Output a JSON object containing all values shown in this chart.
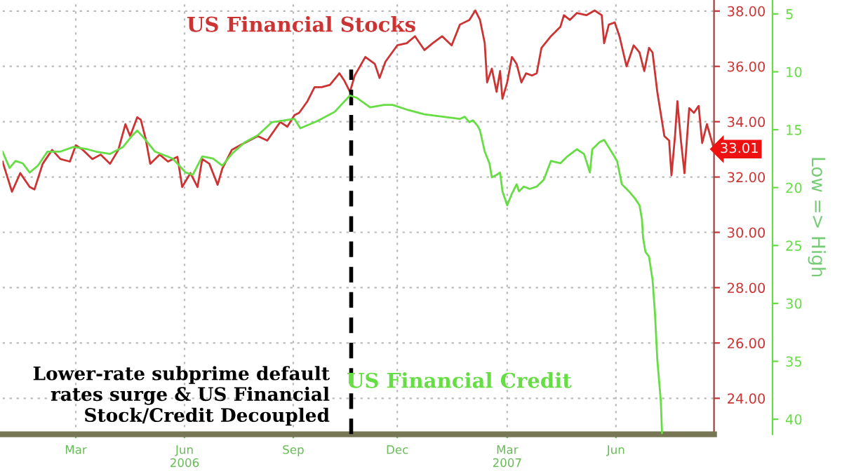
{
  "chart_data": {
    "type": "line",
    "xlim": [
      "2006-01-11",
      "2007-09-05"
    ],
    "xticks": [
      {
        "value": "2006-03-14",
        "label": "Mar"
      },
      {
        "value": "2006-06-14",
        "label": "Jun\n2006"
      },
      {
        "value": "2006-09-14",
        "label": "Sep"
      },
      {
        "value": "2006-12-11",
        "label": "Dec"
      },
      {
        "value": "2007-03-14",
        "label": "Mar\n2007"
      },
      {
        "value": "2007-06-14",
        "label": "Jun"
      }
    ],
    "ylim": [
      22.7,
      38.4
    ],
    "yticks": [
      {
        "value": 24,
        "label": "24.00"
      },
      {
        "value": 26,
        "label": "26.00"
      },
      {
        "value": 28,
        "label": "28.00"
      },
      {
        "value": 30,
        "label": "30.00"
      },
      {
        "value": 32,
        "label": "32.00"
      },
      {
        "value": 34,
        "label": "34.00"
      },
      {
        "value": 36,
        "label": "36.00"
      },
      {
        "value": 38,
        "label": "38.00"
      }
    ],
    "y2lim": [
      41.3,
      3.8
    ],
    "y2ticks": [
      5,
      10,
      15,
      20,
      25,
      30,
      35,
      40
    ],
    "y2label": "Low => High",
    "grid": true,
    "series": [
      {
        "name": "US Financial Stocks",
        "color": "#cc3333",
        "x": [
          "2006-01-11",
          "2006-01-19",
          "2006-01-26",
          "2006-02-03",
          "2006-02-07",
          "2006-02-14",
          "2006-02-22",
          "2006-03-01",
          "2006-03-09",
          "2006-03-14",
          "2006-03-20",
          "2006-03-28",
          "2006-04-04",
          "2006-04-12",
          "2006-04-19",
          "2006-04-25",
          "2006-04-29",
          "2006-05-05",
          "2006-05-08",
          "2006-05-12",
          "2006-05-16",
          "2006-05-24",
          "2006-05-31",
          "2006-06-08",
          "2006-06-12",
          "2006-06-19",
          "2006-06-25",
          "2006-06-29",
          "2006-07-05",
          "2006-07-12",
          "2006-07-16",
          "2006-07-24",
          "2006-07-31",
          "2006-08-15",
          "2006-08-23",
          "2006-09-03",
          "2006-09-09",
          "2006-09-15",
          "2006-09-19",
          "2006-09-26",
          "2006-10-02",
          "2006-10-08",
          "2006-10-15",
          "2006-10-23",
          "2006-10-27",
          "2006-11-01",
          "2006-11-05",
          "2006-11-14",
          "2006-11-22",
          "2006-11-26",
          "2006-12-01",
          "2006-12-11",
          "2006-12-19",
          "2006-12-26",
          "2007-01-03",
          "2007-01-10",
          "2007-01-18",
          "2007-01-26",
          "2007-02-02",
          "2007-02-10",
          "2007-02-15",
          "2007-02-19",
          "2007-02-23",
          "2007-02-25",
          "2007-03-01",
          "2007-03-05",
          "2007-03-08",
          "2007-03-10",
          "2007-03-14",
          "2007-03-18",
          "2007-03-22",
          "2007-03-26",
          "2007-03-30",
          "2007-04-04",
          "2007-04-08",
          "2007-04-12",
          "2007-04-20",
          "2007-04-28",
          "2007-05-01",
          "2007-05-06",
          "2007-05-12",
          "2007-05-20",
          "2007-05-27",
          "2007-06-02",
          "2007-06-04",
          "2007-06-08",
          "2007-06-13",
          "2007-06-17",
          "2007-06-23",
          "2007-06-29",
          "2007-07-04",
          "2007-07-08",
          "2007-07-12",
          "2007-07-15",
          "2007-07-19",
          "2007-07-25",
          "2007-07-29",
          "2007-07-31",
          "2007-08-03",
          "2007-08-05",
          "2007-08-08",
          "2007-08-11",
          "2007-08-15",
          "2007-08-19",
          "2007-08-23",
          "2007-08-26",
          "2007-08-30",
          "2007-09-05"
        ],
        "values": [
          32.56,
          31.47,
          32.14,
          31.64,
          31.55,
          32.48,
          32.98,
          32.65,
          32.56,
          33.15,
          32.98,
          32.65,
          32.81,
          32.48,
          32.98,
          33.91,
          33.48,
          34.16,
          34.07,
          33.4,
          32.48,
          32.81,
          32.56,
          32.73,
          31.64,
          32.14,
          31.64,
          32.65,
          32.48,
          31.72,
          32.31,
          32.98,
          33.15,
          33.48,
          33.32,
          33.99,
          33.82,
          34.24,
          34.32,
          34.74,
          35.25,
          35.25,
          35.33,
          35.75,
          35.5,
          35.08,
          35.67,
          36.34,
          36.09,
          35.58,
          36.17,
          36.76,
          36.84,
          37.09,
          36.59,
          36.84,
          37.09,
          36.76,
          37.51,
          37.68,
          38.02,
          37.68,
          36.84,
          35.42,
          35.92,
          35.08,
          35.83,
          34.83,
          35.42,
          36.34,
          36.09,
          35.42,
          35.75,
          35.67,
          35.75,
          36.67,
          37.09,
          37.43,
          37.85,
          37.68,
          37.93,
          37.85,
          38.02,
          37.85,
          36.84,
          37.51,
          37.59,
          37.09,
          36.0,
          36.76,
          36.5,
          35.83,
          36.67,
          36.5,
          35.08,
          33.48,
          33.32,
          32.06,
          33.48,
          34.74,
          33.32,
          32.14,
          34.49,
          34.32,
          34.57,
          33.23,
          33.91,
          33.01
        ]
      },
      {
        "name": "US Financial Credit",
        "color": "#66dd44",
        "axis": "y2",
        "x": [
          "2006-01-11",
          "2006-01-17",
          "2006-01-22",
          "2006-01-28",
          "2006-02-03",
          "2006-02-10",
          "2006-02-18",
          "2006-03-01",
          "2006-03-12",
          "2006-03-24",
          "2006-03-31",
          "2006-04-12",
          "2006-04-23",
          "2006-05-01",
          "2006-05-05",
          "2006-05-12",
          "2006-05-20",
          "2006-06-04",
          "2006-06-15",
          "2006-06-21",
          "2006-06-29",
          "2006-07-08",
          "2006-07-16",
          "2006-07-24",
          "2006-08-04",
          "2006-08-15",
          "2006-08-27",
          "2006-09-07",
          "2006-09-15",
          "2006-09-20",
          "2006-10-04",
          "2006-10-19",
          "2006-11-01",
          "2006-11-07",
          "2006-11-18",
          "2006-11-30",
          "2006-12-07",
          "2006-12-19",
          "2007-01-03",
          "2007-01-18",
          "2007-02-02",
          "2007-02-06",
          "2007-02-10",
          "2007-02-13",
          "2007-02-17",
          "2007-02-19",
          "2007-02-23",
          "2007-02-27",
          "2007-03-01",
          "2007-03-05",
          "2007-03-08",
          "2007-03-10",
          "2007-03-14",
          "2007-03-18",
          "2007-03-22",
          "2007-03-24",
          "2007-03-28",
          "2007-04-02",
          "2007-04-08",
          "2007-04-14",
          "2007-04-20",
          "2007-04-28",
          "2007-05-04",
          "2007-05-12",
          "2007-05-18",
          "2007-05-23",
          "2007-05-25",
          "2007-05-31",
          "2007-06-04",
          "2007-06-09",
          "2007-06-15",
          "2007-06-19",
          "2007-06-25",
          "2007-06-30",
          "2007-07-04",
          "2007-07-06",
          "2007-07-07",
          "2007-07-09",
          "2007-07-12",
          "2007-07-15",
          "2007-07-17",
          "2007-07-19",
          "2007-07-22",
          "2007-07-23"
        ],
        "values": [
          16.89,
          18.3,
          17.7,
          17.9,
          18.7,
          18.1,
          16.89,
          16.89,
          16.49,
          16.69,
          16.89,
          17.09,
          16.49,
          15.48,
          15.07,
          15.88,
          16.89,
          17.49,
          18.7,
          18.9,
          17.3,
          17.49,
          18.1,
          17.09,
          16.09,
          15.48,
          14.35,
          14.19,
          14.07,
          14.88,
          14.27,
          13.46,
          12.05,
          12.26,
          13.07,
          12.86,
          12.86,
          13.26,
          13.67,
          13.87,
          14.07,
          13.87,
          14.35,
          14.19,
          14.67,
          15.07,
          16.89,
          17.9,
          19.11,
          18.9,
          18.7,
          20.32,
          21.53,
          20.52,
          19.71,
          20.32,
          19.91,
          20.11,
          19.91,
          19.31,
          17.7,
          17.9,
          17.3,
          16.69,
          17.09,
          18.7,
          16.69,
          16.09,
          15.88,
          16.69,
          17.7,
          19.71,
          20.32,
          20.92,
          21.53,
          22.74,
          24.35,
          25.56,
          25.96,
          27.97,
          30.79,
          34.83,
          38.46,
          41.2
        ]
      }
    ],
    "ref_lines": [
      {
        "axis": "x",
        "value": "2006-11-02",
        "color": "#000000",
        "line_style": "dashed"
      }
    ],
    "annotations": [
      "Lower-rate subprime default\nrates surge & US Financial\nStock/Credit Decoupled",
      {
        "text": "33.01",
        "x": "2007-09-05",
        "y": 33.01
      }
    ]
  }
}
